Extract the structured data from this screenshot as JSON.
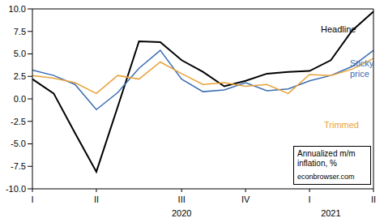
{
  "chart_data": {
    "type": "line",
    "categories": [
      "I",
      null,
      null,
      "II",
      null,
      null,
      null,
      "III",
      null,
      null,
      "IV",
      null,
      null,
      "I",
      null,
      null,
      "II"
    ],
    "x_groups": [
      {
        "label": "2020",
        "x": 7
      },
      {
        "label": "2021",
        "x": 14
      }
    ],
    "series": [
      {
        "name": "Headline",
        "color": "#000000",
        "values": [
          2.2,
          0.6,
          -3.8,
          -8.1,
          -0.9,
          6.4,
          6.3,
          4.3,
          3.0,
          1.4,
          2.0,
          2.8,
          3.0,
          3.1,
          4.3,
          7.6,
          9.7
        ]
      },
      {
        "name": "Sticky price",
        "color": "#3b6db3",
        "values": [
          3.2,
          2.6,
          1.6,
          -1.2,
          0.7,
          3.4,
          5.4,
          2.2,
          0.8,
          1.0,
          1.8,
          0.9,
          1.1,
          2.0,
          2.6,
          3.6,
          5.4
        ]
      },
      {
        "name": "Trimmed",
        "color": "#e8a23a",
        "values": [
          2.6,
          2.3,
          1.8,
          0.6,
          2.6,
          2.2,
          4.1,
          2.8,
          1.6,
          1.8,
          1.4,
          1.6,
          0.6,
          2.7,
          2.6,
          3.3,
          4.5
        ]
      }
    ],
    "ylim": [
      -10,
      10
    ],
    "yticks": [
      {
        "value": -10,
        "label": "-10.0"
      },
      -7.5,
      {
        "value": -5,
        "label": "-5.0"
      },
      -2.5,
      {
        "value": 0,
        "label": "0.0"
      },
      2.5,
      {
        "value": 5,
        "label": "5.0"
      },
      7.5,
      {
        "value": 10,
        "label": "10.0"
      }
    ],
    "grid": false,
    "annotations": [
      {
        "text": "Annualized m/m inflation, %"
      },
      {
        "text": "econbrowser.com"
      }
    ]
  }
}
